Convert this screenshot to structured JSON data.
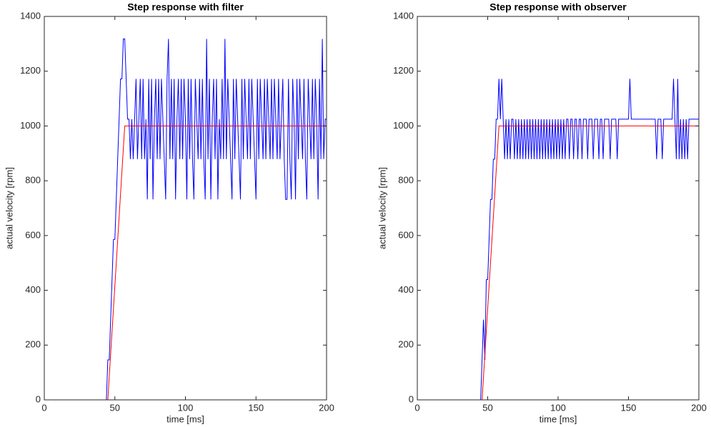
{
  "chart_data": [
    {
      "type": "line",
      "title": "Step response with filter",
      "xlabel": "time [ms]",
      "ylabel": "actual velocity [rpm]",
      "xlim": [
        0,
        200
      ],
      "ylim": [
        0,
        1400
      ],
      "xticks": [
        0,
        50,
        100,
        150,
        200
      ],
      "yticks": [
        0,
        200,
        400,
        600,
        800,
        1000,
        1200,
        1400
      ],
      "x": [
        0,
        1,
        2,
        3,
        4,
        5,
        6,
        7,
        8,
        9,
        10,
        11,
        12,
        13,
        14,
        15,
        16,
        17,
        18,
        19,
        20,
        21,
        22,
        23,
        24,
        25,
        26,
        27,
        28,
        29,
        30,
        31,
        32,
        33,
        34,
        35,
        36,
        37,
        38,
        39,
        40,
        41,
        42,
        43,
        44,
        45,
        46,
        47,
        48,
        49,
        50,
        51,
        52,
        53,
        54,
        55,
        56,
        57,
        58,
        59,
        60,
        61,
        62,
        63,
        64,
        65,
        66,
        67,
        68,
        69,
        70,
        71,
        72,
        73,
        74,
        75,
        76,
        77,
        78,
        79,
        80,
        81,
        82,
        83,
        84,
        85,
        86,
        87,
        88,
        89,
        90,
        91,
        92,
        93,
        94,
        95,
        96,
        97,
        98,
        99,
        100,
        101,
        102,
        103,
        104,
        105,
        106,
        107,
        108,
        109,
        110,
        111,
        112,
        113,
        114,
        115,
        116,
        117,
        118,
        119,
        120,
        121,
        122,
        123,
        124,
        125,
        126,
        127,
        128,
        129,
        130,
        131,
        132,
        133,
        134,
        135,
        136,
        137,
        138,
        139,
        140,
        141,
        142,
        143,
        144,
        145,
        146,
        147,
        148,
        149,
        150,
        151,
        152,
        153,
        154,
        155,
        156,
        157,
        158,
        159,
        160,
        161,
        162,
        163,
        164,
        165,
        166,
        167,
        168,
        169,
        170,
        171,
        172,
        173,
        174,
        175,
        176,
        177,
        178,
        179,
        180,
        181,
        182,
        183,
        184,
        185,
        186,
        187,
        188,
        189,
        190,
        191,
        192,
        193,
        194,
        195,
        196,
        197,
        198,
        199,
        200
      ],
      "series": [
        {
          "color": "#0000ff",
          "values": [
            0,
            0,
            0,
            0,
            0,
            0,
            0,
            0,
            0,
            0,
            0,
            0,
            0,
            0,
            0,
            0,
            0,
            0,
            0,
            0,
            0,
            0,
            0,
            0,
            0,
            0,
            0,
            0,
            0,
            0,
            0,
            0,
            0,
            0,
            0,
            0,
            0,
            0,
            0,
            0,
            0,
            0,
            0,
            0,
            0,
            146,
            146,
            293,
            439,
            586,
            586,
            732,
            879,
            1025,
            1172,
            1172,
            1318,
            1318,
            1172,
            1025,
            1025,
            879,
            1025,
            879,
            1025,
            1172,
            879,
            1025,
            1172,
            879,
            1172,
            879,
            1025,
            732,
            1172,
            879,
            1172,
            732,
            1025,
            1172,
            879,
            1172,
            879,
            1172,
            1025,
            879,
            732,
            1172,
            1318,
            879,
            1172,
            879,
            1172,
            732,
            1025,
            1172,
            879,
            1172,
            879,
            1172,
            1025,
            732,
            1172,
            879,
            1172,
            879,
            732,
            1172,
            1025,
            879,
            1172,
            879,
            1172,
            879,
            732,
            1318,
            879,
            1172,
            732,
            1025,
            1172,
            879,
            1172,
            732,
            1025,
            879,
            1172,
            879,
            1318,
            879,
            1172,
            1025,
            879,
            732,
            1172,
            879,
            1172,
            1025,
            879,
            732,
            1172,
            879,
            1172,
            1025,
            879,
            1172,
            879,
            1172,
            1025,
            879,
            732,
            1172,
            879,
            1172,
            1025,
            879,
            1172,
            879,
            1172,
            1025,
            879,
            1172,
            879,
            1172,
            1025,
            879,
            1172,
            879,
            1025,
            1172,
            879,
            732,
            732,
            1172,
            879,
            732,
            1172,
            1025,
            732,
            1172,
            879,
            1172,
            1025,
            879,
            1172,
            879,
            732,
            1172,
            1025,
            879,
            1172,
            879,
            1172,
            1025,
            732,
            1172,
            879,
            1318,
            879,
            1025,
            1025
          ]
        },
        {
          "color": "#ff0000",
          "x": [
            0,
            45,
            57,
            200
          ],
          "values": [
            0,
            0,
            1000,
            1000
          ]
        }
      ]
    },
    {
      "type": "line",
      "title": "Step response with observer",
      "xlabel": "time [ms]",
      "ylabel": "actual velocity [rpm]",
      "xlim": [
        0,
        200
      ],
      "ylim": [
        0,
        1400
      ],
      "xticks": [
        0,
        50,
        100,
        150,
        200
      ],
      "yticks": [
        0,
        200,
        400,
        600,
        800,
        1000,
        1200,
        1400
      ],
      "x": [
        0,
        1,
        2,
        3,
        4,
        5,
        6,
        7,
        8,
        9,
        10,
        11,
        12,
        13,
        14,
        15,
        16,
        17,
        18,
        19,
        20,
        21,
        22,
        23,
        24,
        25,
        26,
        27,
        28,
        29,
        30,
        31,
        32,
        33,
        34,
        35,
        36,
        37,
        38,
        39,
        40,
        41,
        42,
        43,
        44,
        45,
        46,
        47,
        48,
        49,
        50,
        51,
        52,
        53,
        54,
        55,
        56,
        57,
        58,
        59,
        60,
        61,
        62,
        63,
        64,
        65,
        66,
        67,
        68,
        69,
        70,
        71,
        72,
        73,
        74,
        75,
        76,
        77,
        78,
        79,
        80,
        81,
        82,
        83,
        84,
        85,
        86,
        87,
        88,
        89,
        90,
        91,
        92,
        93,
        94,
        95,
        96,
        97,
        98,
        99,
        100,
        101,
        102,
        103,
        104,
        105,
        106,
        107,
        108,
        109,
        110,
        111,
        112,
        113,
        114,
        115,
        116,
        117,
        118,
        119,
        120,
        121,
        122,
        123,
        124,
        125,
        126,
        127,
        128,
        129,
        130,
        131,
        132,
        133,
        134,
        135,
        136,
        137,
        138,
        139,
        140,
        141,
        142,
        143,
        144,
        145,
        146,
        147,
        148,
        149,
        150,
        151,
        152,
        153,
        154,
        155,
        156,
        157,
        158,
        159,
        160,
        161,
        162,
        163,
        164,
        165,
        166,
        167,
        168,
        169,
        170,
        171,
        172,
        173,
        174,
        175,
        176,
        177,
        178,
        179,
        180,
        181,
        182,
        183,
        184,
        185,
        186,
        187,
        188,
        189,
        190,
        191,
        192,
        193,
        194,
        195,
        196,
        197,
        198,
        199,
        200
      ],
      "series": [
        {
          "color": "#0000ff",
          "values": [
            0,
            0,
            0,
            0,
            0,
            0,
            0,
            0,
            0,
            0,
            0,
            0,
            0,
            0,
            0,
            0,
            0,
            0,
            0,
            0,
            0,
            0,
            0,
            0,
            0,
            0,
            0,
            0,
            0,
            0,
            0,
            0,
            0,
            0,
            0,
            0,
            0,
            0,
            0,
            0,
            0,
            0,
            0,
            0,
            0,
            0,
            146,
            293,
            146,
            439,
            439,
            586,
            732,
            732,
            879,
            879,
            1025,
            1025,
            1172,
            1025,
            1172,
            1025,
            879,
            1025,
            879,
            1025,
            879,
            1025,
            1025,
            879,
            1025,
            879,
            1025,
            879,
            1025,
            879,
            1025,
            879,
            1025,
            879,
            1025,
            879,
            1025,
            879,
            1025,
            879,
            1025,
            879,
            1025,
            879,
            1025,
            879,
            1025,
            879,
            1025,
            879,
            1025,
            879,
            1025,
            879,
            1025,
            879,
            1025,
            879,
            1025,
            879,
            1025,
            1025,
            879,
            1025,
            1025,
            879,
            1025,
            1025,
            879,
            1025,
            1025,
            879,
            1025,
            1025,
            1025,
            879,
            1025,
            1025,
            1025,
            879,
            1025,
            1025,
            1025,
            879,
            1025,
            1025,
            879,
            1025,
            1025,
            1025,
            1025,
            879,
            1025,
            1025,
            1025,
            1025,
            879,
            1025,
            1025,
            1025,
            1025,
            1025,
            1025,
            1025,
            1025,
            1172,
            1025,
            1025,
            1025,
            1025,
            1025,
            1025,
            1025,
            1025,
            1025,
            1025,
            1025,
            1025,
            1025,
            1025,
            1025,
            1025,
            1025,
            1025,
            879,
            1025,
            1025,
            1025,
            879,
            1025,
            1025,
            1025,
            1025,
            1025,
            1025,
            1025,
            1172,
            1025,
            879,
            1172,
            879,
            1025,
            879,
            1025,
            879,
            1025,
            879,
            1025,
            1025,
            1025,
            1025,
            1025,
            1025,
            1025,
            1025
          ]
        },
        {
          "color": "#ff0000",
          "x": [
            0,
            46,
            58,
            200
          ],
          "values": [
            0,
            0,
            1000,
            1000
          ]
        }
      ]
    }
  ]
}
